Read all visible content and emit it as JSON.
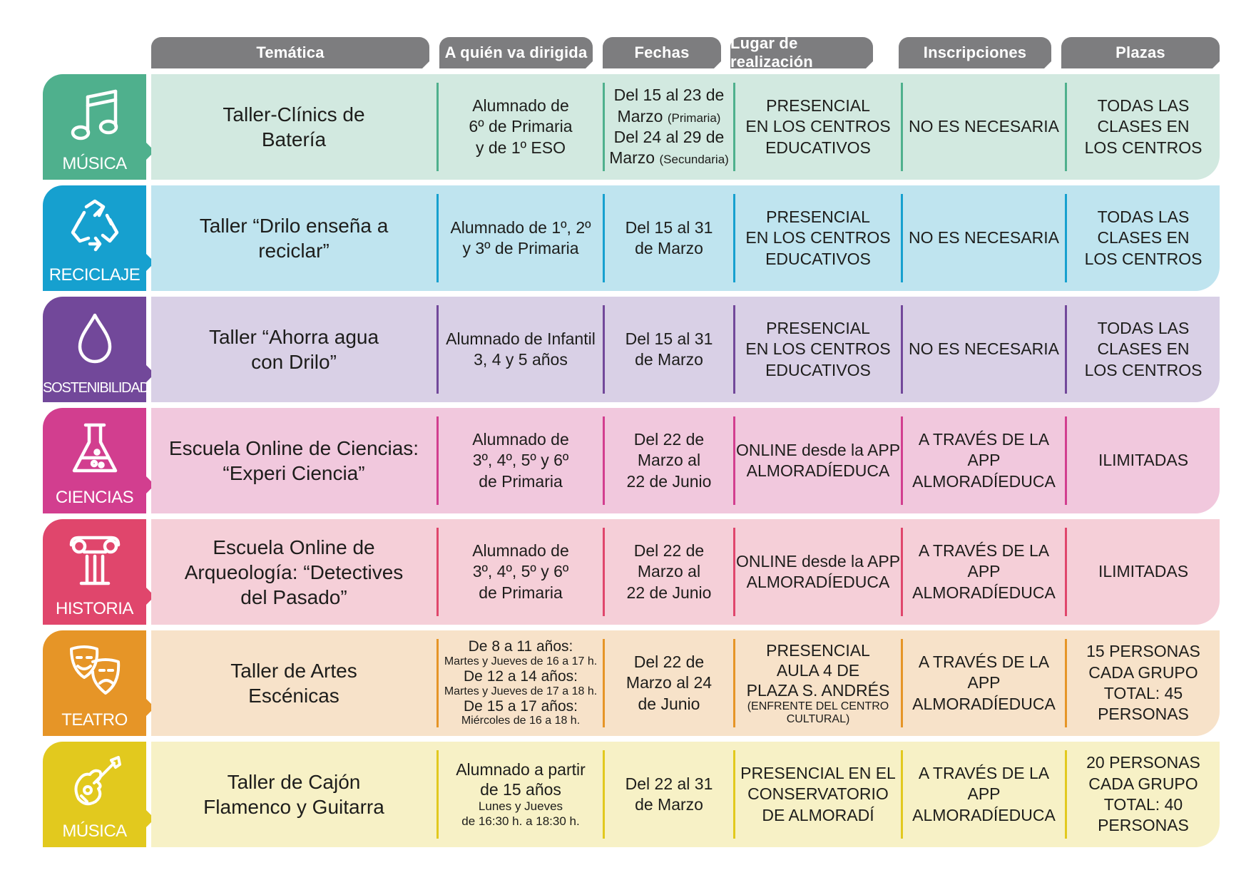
{
  "headers": {
    "tematica": "Temática",
    "dirigida": "A quién va dirigida",
    "fechas": "Fechas",
    "lugar": "Lugar de realización",
    "inscripciones": "Inscripciones",
    "plazas": "Plazas"
  },
  "colors": {
    "header": "#7d7d7f",
    "musica_tile": "#4fb08d",
    "musica_band": "#d2e9e0",
    "reciclaje_tile": "#16a0cf",
    "reciclaje_band": "#bfe4ef",
    "sostenibilidad_tile": "#72489a",
    "sostenibilidad_band": "#d9d0e6",
    "ciencias_tile": "#d23e8f",
    "ciencias_band": "#f1c8dd",
    "historia_tile": "#e0466c",
    "historia_band": "#f5cfd8",
    "teatro_tile": "#e69527",
    "teatro_band": "#f7e2c9",
    "musica2_tile": "#e2c91e",
    "musica2_band": "#f7f1c6"
  },
  "rows": [
    {
      "category": "MÚSICA",
      "icon": "music-notes-icon",
      "title": [
        "Taller-Clínics de",
        "Batería"
      ],
      "dirigida": [
        "Alumnado de",
        "6º de Primaria",
        "y de 1º ESO"
      ],
      "fechas": {
        "l1": "Del 15 al 23 de",
        "l2": "Marzo",
        "l2s": "(Primaria)",
        "l3": "Del 24 al 29 de",
        "l4": "Marzo",
        "l4s": "(Secundaria)"
      },
      "lugar": [
        "PRESENCIAL",
        "EN LOS CENTROS",
        "EDUCATIVOS"
      ],
      "inscripciones": [
        "NO ES NECESARIA"
      ],
      "plazas": [
        "TODAS LAS",
        "CLASES EN",
        "LOS CENTROS"
      ]
    },
    {
      "category": "RECICLAJE",
      "icon": "recycle-icon",
      "title": [
        "Taller “Drilo enseña a",
        "reciclar”"
      ],
      "dirigida": [
        "Alumnado de 1º, 2º",
        "y 3º de Primaria"
      ],
      "fechas": [
        "Del 15 al 31",
        "de Marzo"
      ],
      "lugar": [
        "PRESENCIAL",
        "EN LOS CENTROS",
        "EDUCATIVOS"
      ],
      "inscripciones": [
        "NO ES NECESARIA"
      ],
      "plazas": [
        "TODAS LAS",
        "CLASES EN",
        "LOS CENTROS"
      ]
    },
    {
      "category": "SOSTENIBILIDAD",
      "icon": "water-drop-icon",
      "title": [
        "Taller “Ahorra agua",
        "con Drilo”"
      ],
      "dirigida": [
        "Alumnado de Infantil",
        "3, 4 y 5 años"
      ],
      "fechas": [
        "Del 15 al 31",
        "de Marzo"
      ],
      "lugar": [
        "PRESENCIAL",
        "EN LOS CENTROS",
        "EDUCATIVOS"
      ],
      "inscripciones": [
        "NO ES NECESARIA"
      ],
      "plazas": [
        "TODAS LAS",
        "CLASES EN",
        "LOS CENTROS"
      ]
    },
    {
      "category": "CIENCIAS",
      "icon": "flask-icon",
      "title": [
        "Escuela Online de Ciencias:",
        "“Experi Ciencia”"
      ],
      "dirigida": [
        "Alumnado de",
        "3º, 4º, 5º y 6º",
        "de Primaria"
      ],
      "fechas": [
        "Del 22 de",
        "Marzo al",
        "22 de Junio"
      ],
      "lugar": [
        "ONLINE desde la APP",
        "ALMORADÍEDUCA"
      ],
      "inscripciones": [
        "A TRAVÉS DE LA APP",
        "ALMORADÍEDUCA"
      ],
      "plazas": [
        "ILIMITADAS"
      ]
    },
    {
      "category": "HISTORIA",
      "icon": "ionic-column-icon",
      "title": [
        "Escuela Online de",
        "Arqueología: “Detectives",
        "del Pasado”"
      ],
      "dirigida": [
        "Alumnado de",
        "3º, 4º, 5º y 6º",
        "de Primaria"
      ],
      "fechas": [
        "Del 22 de",
        "Marzo al",
        "22 de Junio"
      ],
      "lugar": [
        "ONLINE desde la APP",
        "ALMORADÍEDUCA"
      ],
      "inscripciones": [
        "A TRAVÉS DE LA APP",
        "ALMORADÍEDUCA"
      ],
      "plazas": [
        "ILIMITADAS"
      ]
    },
    {
      "category": "TEATRO",
      "icon": "theater-masks-icon",
      "title": [
        "Taller de Artes",
        "Escénicas"
      ],
      "dirigida": {
        "g1": "De 8 a 11 años:",
        "g1s": "Martes y Jueves de 16 a 17 h.",
        "g2": "De 12 a 14 años:",
        "g2s": "Martes y Jueves de 17 a 18 h.",
        "g3": "De 15 a 17 años:",
        "g3s": "Miércoles de 16 a 18 h."
      },
      "fechas": [
        "Del 22 de",
        "Marzo al 24",
        "de Junio"
      ],
      "lugar": {
        "l1": "PRESENCIAL",
        "l2": "AULA 4 DE",
        "l3": "PLAZA S. ANDRÉS",
        "l4": "(ENFRENTE DEL CENTRO",
        "l5": "CULTURAL)"
      },
      "inscripciones": [
        "A TRAVÉS DE LA APP",
        "ALMORADÍEDUCA"
      ],
      "plazas": [
        "15 PERSONAS",
        "CADA GRUPO",
        "TOTAL: 45",
        "PERSONAS"
      ]
    },
    {
      "category": "MÚSICA",
      "icon": "guitar-icon",
      "title": [
        "Taller de Cajón",
        "Flamenco y Guitarra"
      ],
      "dirigida": {
        "l1": "Alumnado a partir",
        "l2": "de 15 años",
        "l3": "Lunes y Jueves",
        "l4": "de 16:30 h. a 18:30 h."
      },
      "fechas": [
        "Del 22 al 31",
        "de Marzo"
      ],
      "lugar": [
        "PRESENCIAL EN EL",
        "CONSERVATORIO",
        "DE ALMORADÍ"
      ],
      "inscripciones": [
        "A TRAVÉS DE LA APP",
        "ALMORADÍEDUCA"
      ],
      "plazas": [
        "20 PERSONAS",
        "CADA GRUPO",
        "TOTAL: 40",
        "PERSONAS"
      ]
    }
  ]
}
